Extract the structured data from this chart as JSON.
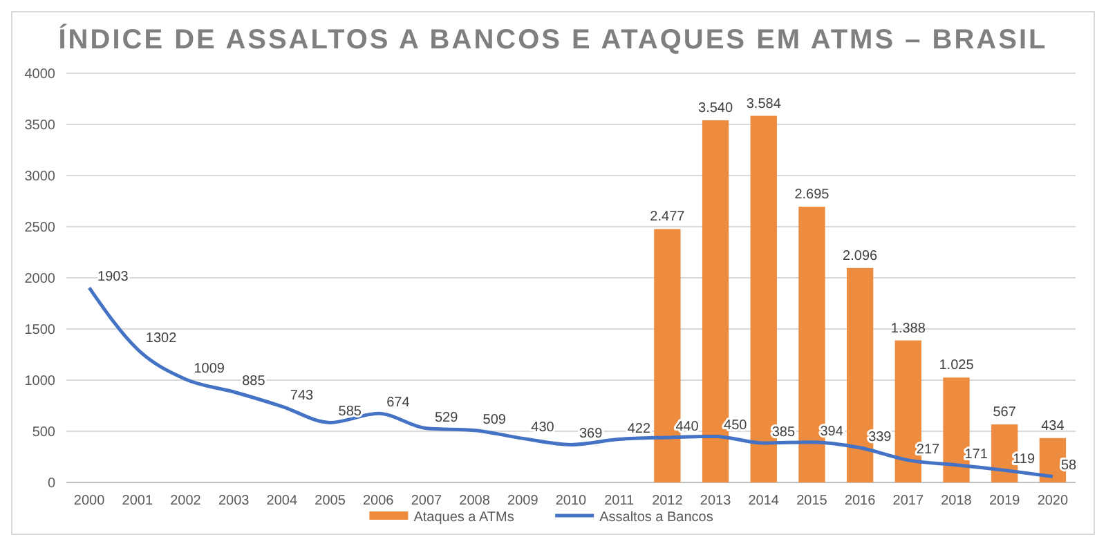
{
  "chart_data": {
    "type": "bar",
    "title": "ÍNDICE DE ASSALTOS A BANCOS E ATAQUES EM ATMS – BRASIL",
    "categories": [
      "2000",
      "2001",
      "2002",
      "2003",
      "2004",
      "2005",
      "2006",
      "2007",
      "2008",
      "2009",
      "2010",
      "2011",
      "2012",
      "2013",
      "2014",
      "2015",
      "2016",
      "2017",
      "2018",
      "2019",
      "2020"
    ],
    "series": [
      {
        "name": "Ataques a ATMs",
        "color": "#ed8b3f",
        "values": [
          null,
          null,
          null,
          null,
          null,
          null,
          null,
          null,
          null,
          null,
          null,
          null,
          2477,
          3540,
          3584,
          2695,
          2096,
          1388,
          1025,
          567,
          434
        ],
        "value_labels": [
          null,
          null,
          null,
          null,
          null,
          null,
          null,
          null,
          null,
          null,
          null,
          null,
          "2.477",
          "3.540",
          "3.584",
          "2.695",
          "2.096",
          "1.388",
          "1.025",
          "567",
          "434"
        ]
      },
      {
        "name": "Assaltos a Bancos",
        "type": "line",
        "color": "#4472c4",
        "values": [
          1903,
          1302,
          1009,
          885,
          743,
          585,
          674,
          529,
          509,
          430,
          369,
          422,
          440,
          450,
          385,
          394,
          339,
          217,
          171,
          119,
          58
        ],
        "value_labels": [
          "1903",
          "1302",
          "1009",
          "885",
          "743",
          "585",
          "674",
          "529",
          "509",
          "430",
          "369",
          "422",
          "440",
          "450",
          "385",
          "394",
          "339",
          "217",
          "171",
          "119",
          "58"
        ]
      }
    ],
    "ylim": [
      0,
      4000
    ],
    "yticks": [
      0,
      500,
      1000,
      1500,
      2000,
      2500,
      3000,
      3500,
      4000
    ],
    "grid": "y",
    "legend": "bottom",
    "marker": "none",
    "line_style": "solid"
  }
}
